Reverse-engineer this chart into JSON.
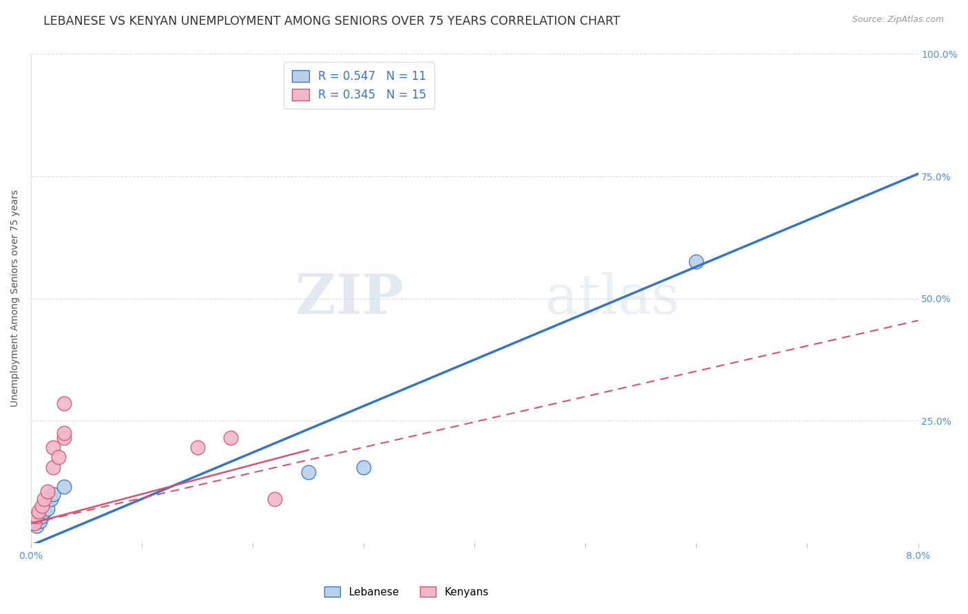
{
  "title": "LEBANESE VS KENYAN UNEMPLOYMENT AMONG SENIORS OVER 75 YEARS CORRELATION CHART",
  "source": "Source: ZipAtlas.com",
  "ylabel": "Unemployment Among Seniors over 75 years",
  "xlim": [
    0.0,
    0.08
  ],
  "ylim": [
    0.0,
    1.0
  ],
  "xticks": [
    0.0,
    0.01,
    0.02,
    0.03,
    0.04,
    0.05,
    0.06,
    0.07,
    0.08
  ],
  "ytick_positions": [
    0.0,
    0.25,
    0.5,
    0.75,
    1.0
  ],
  "yticklabels_right": [
    "",
    "25.0%",
    "50.0%",
    "75.0%",
    "100.0%"
  ],
  "legend_r1": "R = 0.547",
  "legend_n1": "N = 11",
  "legend_r2": "R = 0.345",
  "legend_n2": "N = 15",
  "lebanese_color": "#b8d0e8",
  "lebanese_line_color": "#3575c0",
  "kenyan_color": "#f0b8c8",
  "kenyan_line_color": "#d85070",
  "watermark_zip": "ZIP",
  "watermark_atlas": "atlas",
  "lebanese_points": [
    [
      0.0005,
      0.035
    ],
    [
      0.0008,
      0.045
    ],
    [
      0.001,
      0.055
    ],
    [
      0.0012,
      0.065
    ],
    [
      0.0015,
      0.07
    ],
    [
      0.0018,
      0.09
    ],
    [
      0.002,
      0.1
    ],
    [
      0.003,
      0.115
    ],
    [
      0.025,
      0.145
    ],
    [
      0.03,
      0.155
    ],
    [
      0.06,
      0.575
    ]
  ],
  "kenyan_points": [
    [
      0.0003,
      0.04
    ],
    [
      0.0005,
      0.055
    ],
    [
      0.0007,
      0.065
    ],
    [
      0.001,
      0.075
    ],
    [
      0.0012,
      0.09
    ],
    [
      0.0015,
      0.105
    ],
    [
      0.002,
      0.155
    ],
    [
      0.002,
      0.195
    ],
    [
      0.0025,
      0.175
    ],
    [
      0.003,
      0.215
    ],
    [
      0.003,
      0.225
    ],
    [
      0.003,
      0.285
    ],
    [
      0.015,
      0.195
    ],
    [
      0.018,
      0.215
    ],
    [
      0.022,
      0.09
    ]
  ],
  "leb_regression": [
    0.0,
    0.08,
    -0.005,
    0.755
  ],
  "ken_regression": [
    0.0,
    0.08,
    0.04,
    0.455
  ],
  "background_color": "#ffffff",
  "grid_color": "#d8dde8",
  "title_fontsize": 12.5,
  "axis_label_fontsize": 10,
  "tick_fontsize": 10,
  "right_tick_color": "#5090d0",
  "source_color": "#999999"
}
